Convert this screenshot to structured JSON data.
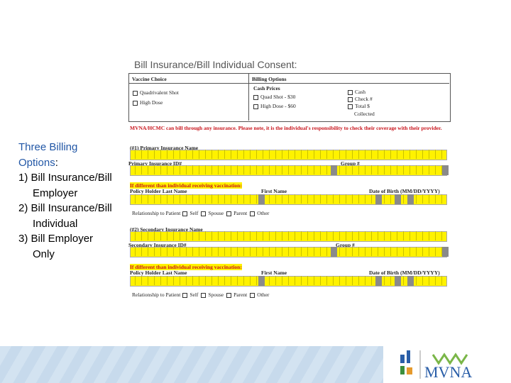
{
  "slide": {
    "title": "Bill Insurance/Bill Individual Consent:",
    "sidebar": {
      "heading": "Three Billing Options",
      "heading_suffix": ":",
      "items": [
        "1) Bill Insurance/Bill Employer",
        "2) Bill Insurance/Bill Individual",
        "3) Bill Employer Only"
      ]
    }
  },
  "form": {
    "vaccine_choice": {
      "header": "Vaccine Choice",
      "options": [
        "Quadrivalent Shot",
        "High Dose"
      ]
    },
    "billing_options": {
      "header": "Billing Options",
      "cash_prices": "Cash Prices",
      "prices": [
        "Quad Shot - $30",
        "High Dose - $60"
      ],
      "methods": [
        "Cash",
        "Check #",
        "Total $"
      ],
      "collected": "Collected"
    },
    "notice": "MVNA/HCMC can bill through any insurance.  Please note, it is the individual's responsibility to check their coverage with their provider.",
    "primary": {
      "name_label": "(#1) Primary Insurance Name",
      "id_label": "Primary Insurance ID#",
      "group_label": "Group #",
      "holder_note": "If different than individual receiving vaccination:",
      "last_name": "Policy Holder Last Name",
      "first_name": "First Name",
      "dob": "Date of Birth (MM/DD/YYYY)",
      "relationship": "Relationship to Patient",
      "relationship_options": [
        "Self",
        "Spouse",
        "Parent",
        "Other"
      ]
    },
    "secondary": {
      "name_label": "(#2) Secondary Insurance Name",
      "id_label": "Secondary Insurance ID#",
      "group_label": "Group #",
      "holder_note": "If different than individual receiving vaccination:",
      "last_name": "Policy Holder Last Name",
      "first_name": "First Name",
      "dob": "Date of Birth (MM/DD/YYYY)",
      "relationship": "Relationship to Patient",
      "relationship_options": [
        "Self",
        "Spouse",
        "Parent",
        "Other"
      ]
    }
  },
  "logo": {
    "text": "MVNA"
  }
}
